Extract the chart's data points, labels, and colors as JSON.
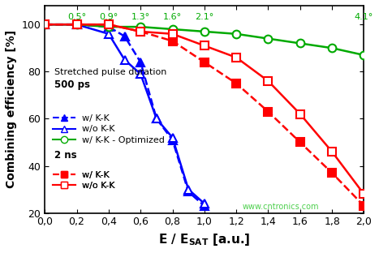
{
  "title": "",
  "xlabel": "E / E$_{SAT}$ [a.u.]",
  "ylabel": "Combining efficiency [%]",
  "xlim": [
    0,
    2.0
  ],
  "ylim": [
    20,
    108
  ],
  "xticks": [
    0.0,
    0.2,
    0.4,
    0.6,
    0.8,
    1.0,
    1.2,
    1.4,
    1.6,
    1.8,
    2.0
  ],
  "xtick_labels": [
    "0,0",
    "0,2",
    "0,4",
    "0,6",
    "0,8",
    "1,0",
    "1,2",
    "1,4",
    "1,6",
    "1,8",
    "2,0"
  ],
  "yticks": [
    20,
    40,
    60,
    80,
    100
  ],
  "series": {
    "500ps_wKK": {
      "x": [
        0.0,
        0.2,
        0.4,
        0.5,
        0.6,
        0.7,
        0.8,
        0.9,
        1.0
      ],
      "y": [
        100,
        100,
        99,
        95,
        84,
        60,
        51,
        29,
        23
      ],
      "color": "#0000FF",
      "linestyle": "dashed",
      "marker": "^",
      "marker_filled": true,
      "label": "w/ K-K",
      "linewidth": 1.8,
      "markersize": 7
    },
    "500ps_woKK": {
      "x": [
        0.0,
        0.2,
        0.4,
        0.5,
        0.6,
        0.7,
        0.8,
        0.9,
        1.0
      ],
      "y": [
        100,
        100,
        96,
        85,
        79,
        60,
        52,
        30,
        24
      ],
      "color": "#0000FF",
      "linestyle": "solid",
      "marker": "^",
      "marker_filled": false,
      "label": "w/o K-K",
      "linewidth": 1.8,
      "markersize": 7
    },
    "500ps_optimized": {
      "x": [
        0.0,
        0.2,
        0.4,
        0.6,
        0.8,
        1.0,
        1.2,
        1.4,
        1.6,
        1.8,
        2.0
      ],
      "y": [
        100,
        100,
        99,
        99,
        98,
        97,
        96,
        94,
        92,
        90,
        87
      ],
      "color": "#00AA00",
      "linestyle": "solid",
      "marker": "o",
      "marker_filled": false,
      "label": "w/ K-K - Optimized",
      "linewidth": 1.8,
      "markersize": 7
    },
    "2ns_wKK": {
      "x": [
        0.0,
        0.2,
        0.4,
        0.6,
        0.8,
        1.0,
        1.2,
        1.4,
        1.6,
        1.8,
        2.0
      ],
      "y": [
        100,
        100,
        100,
        97,
        93,
        84,
        75,
        63,
        50,
        37,
        23
      ],
      "color": "#FF0000",
      "linestyle": "dashed",
      "marker": "s",
      "marker_filled": true,
      "label": "w/ K-K",
      "linewidth": 1.8,
      "markersize": 7
    },
    "2ns_woKK": {
      "x": [
        0.0,
        0.2,
        0.4,
        0.6,
        0.8,
        1.0,
        1.2,
        1.4,
        1.6,
        1.8,
        2.0
      ],
      "y": [
        100,
        100,
        100,
        97,
        96,
        91,
        86,
        76,
        62,
        46,
        28
      ],
      "color": "#FF0000",
      "linestyle": "solid",
      "marker": "s",
      "marker_filled": false,
      "label": "w/o K-K",
      "linewidth": 1.8,
      "markersize": 7
    }
  },
  "angle_annotations": {
    "x_positions": [
      0.2,
      0.4,
      0.6,
      0.8,
      1.0,
      2.0
    ],
    "labels": [
      "0.5°",
      "0.9°",
      "1.3°",
      "1.6°",
      "2.1°",
      "4.1°"
    ],
    "color": "#00AA00"
  },
  "legend_text_500ps": [
    "500 ps",
    "w/ K-K",
    "w/o K-K",
    "w/ K-K - Optimized"
  ],
  "legend_text_2ns": [
    "2 ns",
    "w/ K-K",
    "w/o K-K"
  ],
  "background_color": "#FFFFFF",
  "watermark": "www.cntronics.com"
}
